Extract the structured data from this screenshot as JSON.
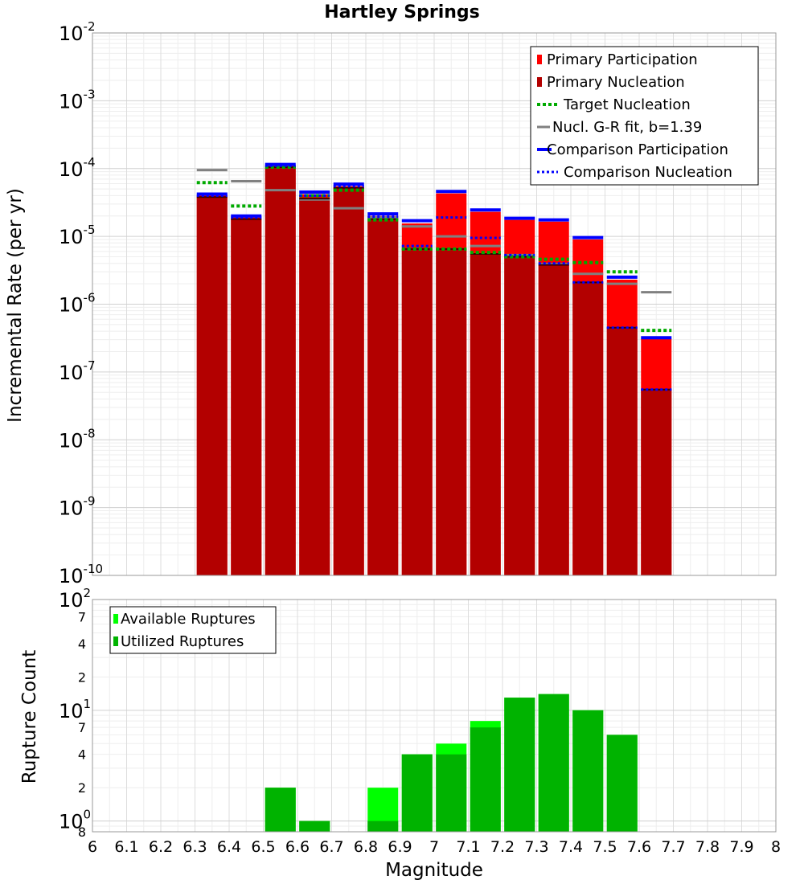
{
  "chart_data": [
    {
      "type": "bar",
      "title": "Hartley Springs",
      "xlabel": "",
      "ylabel": "Incremental Rate (per yr)",
      "yscale": "log",
      "ylim": [
        1e-10,
        0.01
      ],
      "xlim": [
        6.0,
        8.0
      ],
      "grid": true,
      "legend_position": "top-right",
      "y_tick_labels": [
        {
          "base": "10",
          "exp": "-2"
        },
        {
          "base": "10",
          "exp": "-3"
        },
        {
          "base": "10",
          "exp": "-4"
        },
        {
          "base": "10",
          "exp": "-5"
        },
        {
          "base": "10",
          "exp": "-6"
        },
        {
          "base": "10",
          "exp": "-7"
        },
        {
          "base": "10",
          "exp": "-8"
        },
        {
          "base": "10",
          "exp": "-9"
        },
        {
          "base": "10",
          "exp": "-10"
        }
      ],
      "x": [
        6.35,
        6.45,
        6.55,
        6.65,
        6.75,
        6.85,
        6.95,
        7.05,
        7.15,
        7.25,
        7.35,
        7.45,
        7.55,
        7.65
      ],
      "series": [
        {
          "name": "Primary Participation",
          "color": "#ff0000",
          "values": [
            4e-05,
            1.9e-05,
            0.00011,
            4.2e-05,
            5.5e-05,
            2e-05,
            1.55e-05,
            4.3e-05,
            2.3e-05,
            1.75e-05,
            1.65e-05,
            9e-06,
            2.3e-06,
            3.1e-07
          ]
        },
        {
          "name": "Primary Nucleation",
          "color": "#b30000",
          "values": [
            3.8e-05,
            1.8e-05,
            0.000105,
            3.6e-05,
            5.2e-05,
            1.8e-05,
            6.5e-06,
            6.5e-06,
            5.5e-06,
            5e-06,
            3.8e-06,
            2.1e-06,
            4.5e-07,
            5.5e-08
          ]
        },
        {
          "name": "Target Nucleation",
          "color": "#00aa00",
          "values": [
            6.2e-05,
            2.8e-05,
            0.000105,
            4e-05,
            4.8e-05,
            1.75e-05,
            6.5e-06,
            6.5e-06,
            5.8e-06,
            5e-06,
            4.6e-06,
            4.1e-06,
            3e-06,
            4.1e-07
          ]
        },
        {
          "name": "Nucl. G-R fit, b=1.39",
          "color": "#808080",
          "values": [
            9.5e-05,
            6.5e-05,
            4.8e-05,
            3.5e-05,
            2.6e-05,
            1.9e-05,
            1.4e-05,
            1e-05,
            7.2e-06,
            5.3e-06,
            3.9e-06,
            2.8e-06,
            2e-06,
            1.5e-06
          ]
        },
        {
          "name": "Comparison Participation",
          "color": "#0000ff",
          "values": [
            4.2e-05,
            2e-05,
            0.000115,
            4.5e-05,
            5.9e-05,
            2.15e-05,
            1.7e-05,
            4.6e-05,
            2.45e-05,
            1.85e-05,
            1.75e-05,
            9.6e-06,
            2.5e-06,
            3.2e-07
          ]
        },
        {
          "name": "Comparison Nucleation",
          "color": "#0000ff",
          "values": [
            4e-05,
            1.9e-05,
            0.00011,
            4e-05,
            5.5e-05,
            1.95e-05,
            7.2e-06,
            1.9e-05,
            9.5e-06,
            5.3e-06,
            4e-06,
            2.1e-06,
            4.5e-07,
            5.5e-08
          ]
        }
      ]
    },
    {
      "type": "bar",
      "title": "",
      "xlabel": "Magnitude",
      "ylabel": "Rupture Count",
      "yscale": "log",
      "ylim": [
        0.8,
        100
      ],
      "xlim": [
        6.0,
        8.0
      ],
      "grid": true,
      "legend_position": "top-left",
      "x_tick_labels": [
        "6",
        "6.1",
        "6.2",
        "6.3",
        "6.4",
        "6.5",
        "6.6",
        "6.7",
        "6.8",
        "6.9",
        "7",
        "7.1",
        "7.2",
        "7.3",
        "7.4",
        "7.5",
        "7.6",
        "7.7",
        "7.8",
        "7.9",
        "8"
      ],
      "y_ticks": [
        {
          "value": 100,
          "base": "10",
          "exp": "2",
          "major": true
        },
        {
          "value": 70,
          "label": "7",
          "major": false
        },
        {
          "value": 40,
          "label": "4",
          "major": false
        },
        {
          "value": 20,
          "label": "2",
          "major": false
        },
        {
          "value": 10,
          "base": "10",
          "exp": "1",
          "major": true
        },
        {
          "value": 7,
          "label": "7",
          "major": false
        },
        {
          "value": 4,
          "label": "4",
          "major": false
        },
        {
          "value": 2,
          "label": "2",
          "major": false
        },
        {
          "value": 1,
          "base": "10",
          "exp": "0",
          "major": true
        },
        {
          "value": 0.8,
          "label": "8",
          "major": false
        }
      ],
      "x": [
        6.55,
        6.65,
        6.85,
        6.95,
        7.05,
        7.15,
        7.25,
        7.35,
        7.45,
        7.55
      ],
      "series": [
        {
          "name": "Available Ruptures",
          "color": "#00ff00",
          "values": [
            2,
            1,
            2,
            4,
            5,
            8,
            13,
            14,
            10,
            6
          ]
        },
        {
          "name": "Utilized Ruptures",
          "color": "#00b300",
          "values": [
            2,
            1,
            1,
            4,
            4,
            7,
            13,
            14,
            10,
            6
          ]
        }
      ]
    }
  ]
}
